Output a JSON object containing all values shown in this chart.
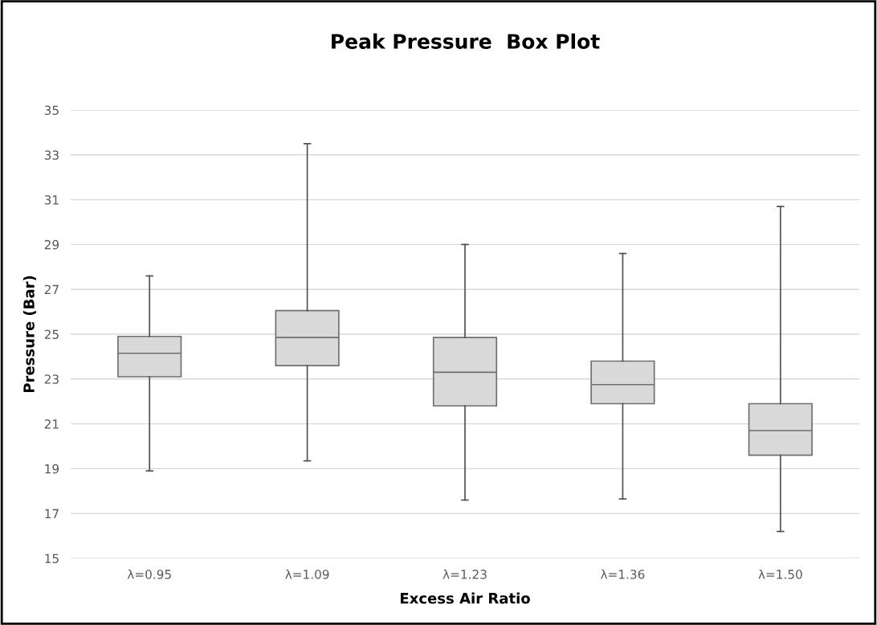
{
  "chart_data": {
    "type": "box",
    "title": "Peak Pressure  Box Plot",
    "xlabel": "Excess Air Ratio",
    "ylabel": "Pressure (Bar)",
    "categories": [
      "λ=0.95",
      "λ=1.09",
      "λ=1.23",
      "λ=1.36",
      "λ=1.50"
    ],
    "color": "#d9d9d9",
    "boxes": [
      {
        "low": 18.9,
        "q1": 23.1,
        "median": 24.15,
        "q3": 24.9,
        "high": 27.6
      },
      {
        "low": 19.35,
        "q1": 23.6,
        "median": 24.85,
        "q3": 26.05,
        "high": 33.5
      },
      {
        "low": 17.6,
        "q1": 21.8,
        "median": 23.3,
        "q3": 24.85,
        "high": 29.0
      },
      {
        "low": 17.65,
        "q1": 21.9,
        "median": 22.75,
        "q3": 23.8,
        "high": 28.6
      },
      {
        "low": 16.2,
        "q1": 19.6,
        "median": 20.7,
        "q3": 21.9,
        "high": 30.7
      }
    ],
    "ylim": [
      15,
      35
    ],
    "yticks": [
      15,
      17,
      19,
      21,
      23,
      25,
      27,
      29,
      31,
      33,
      35
    ],
    "grid": "y"
  }
}
